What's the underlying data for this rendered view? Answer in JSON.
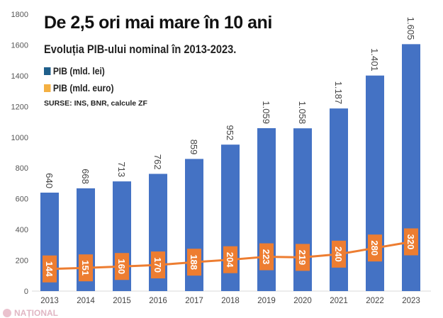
{
  "chart_data": {
    "type": "bar",
    "title": "De 2,5 ori mai mare în 10 ani",
    "subtitle": "Evoluția PIB-ului nominal în 2013-2023.",
    "source": "SURSE: INS, BNR, calcule ZF",
    "categories": [
      "2013",
      "2014",
      "2015",
      "2016",
      "2017",
      "2018",
      "2019",
      "2020",
      "2021",
      "2022",
      "2023"
    ],
    "series": [
      {
        "name": "PIB (mld. lei)",
        "type": "bar",
        "color": "#4472C4",
        "legend_color": "#1F5F8B",
        "values": [
          640,
          668,
          713,
          762,
          859,
          952,
          1059,
          1058,
          1187,
          1401,
          1605
        ],
        "labels": [
          "640",
          "668",
          "713",
          "762",
          "859",
          "952",
          "1.059",
          "1.058",
          "1.187",
          "1.401",
          "1.605"
        ]
      },
      {
        "name": "PIB (mld. euro)",
        "type": "line",
        "color": "#ED7D31",
        "legend_color": "#F4B042",
        "values": [
          144,
          151,
          160,
          170,
          188,
          204,
          223,
          219,
          240,
          280,
          320
        ],
        "labels": [
          "144",
          "151",
          "160",
          "170",
          "188",
          "204",
          "223",
          "219",
          "240",
          "280",
          "320"
        ]
      }
    ],
    "ylim": [
      0,
      1800
    ],
    "yticks": [
      "0",
      "200",
      "400",
      "600",
      "800",
      "1000",
      "1200",
      "1400",
      "1600",
      "1800"
    ],
    "grid": false,
    "legend_position": "top-left"
  },
  "watermark": "NAȚIONAL"
}
